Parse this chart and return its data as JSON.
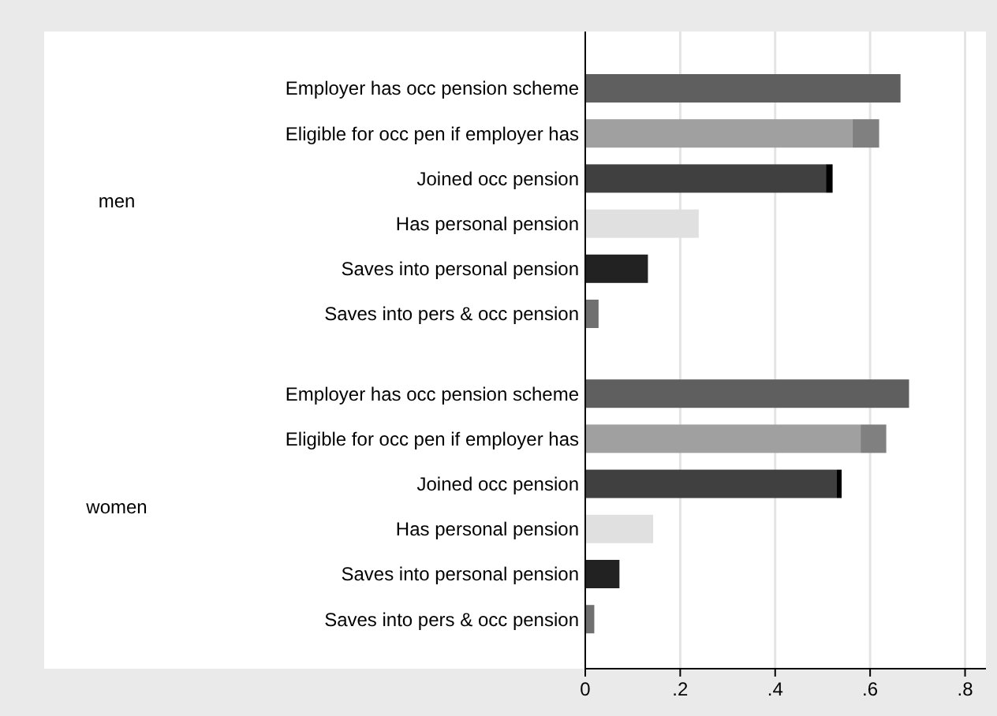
{
  "chart_data": {
    "type": "bar",
    "orientation": "horizontal",
    "stacked": true,
    "categories": [
      "Employer has occ pension scheme",
      "Eligible for occ pen if employer has",
      "Joined occ pension",
      "Has personal pension",
      "Saves into personal pension",
      "Saves into pers & occ pension",
      "Employer has occ pension scheme",
      "Eligible for occ pen if employer has",
      "Joined occ pension",
      "Has personal pension",
      "Saves into personal pension",
      "Saves into pers & occ pension"
    ],
    "series": [
      {
        "values": [
          0.664,
          0.563,
          0.507,
          0.239,
          0.132,
          0.028,
          0.682,
          0.58,
          0.53,
          0.143,
          0.072,
          0.019
        ],
        "colors": [
          "#5f5f5f",
          "#a0a0a0",
          "#404040",
          "#e0e0e0",
          "#222222",
          "#707070",
          "#5f5f5f",
          "#a0a0a0",
          "#404040",
          "#e0e0e0",
          "#222222",
          "#707070"
        ]
      },
      {
        "values": [
          null,
          0.056,
          0.014,
          null,
          null,
          null,
          null,
          0.054,
          0.01,
          null,
          null,
          null
        ],
        "colors": [
          null,
          "#808080",
          "#000000",
          null,
          null,
          null,
          null,
          "#808080",
          "#000000",
          null,
          null,
          null
        ]
      }
    ],
    "annotations": [
      "men",
      "women"
    ],
    "xlim": [
      0,
      0.844
    ],
    "xticks": [
      0,
      {
        "value": 0.2,
        "label": ".2"
      },
      {
        "value": 0.4,
        "label": ".4"
      },
      {
        "value": 0.6,
        "label": ".6"
      },
      {
        "value": 0.8,
        "label": ".8"
      }
    ],
    "grid": "x"
  }
}
